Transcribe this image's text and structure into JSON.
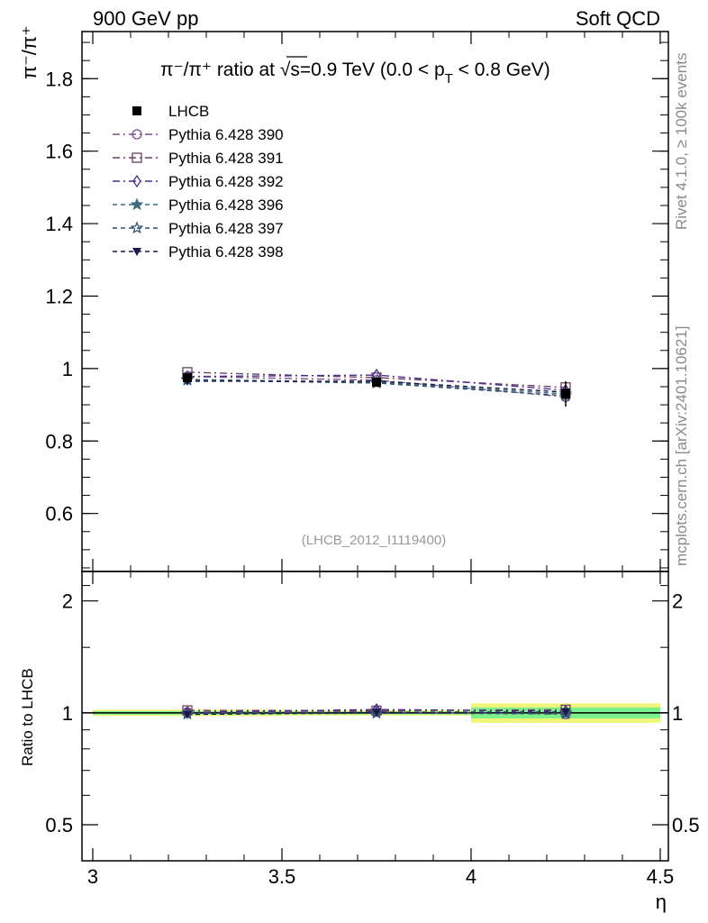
{
  "header": {
    "left": "900 GeV pp",
    "right": "Soft QCD"
  },
  "side_labels": {
    "rivet": "Rivet 4.1.0, ≥ 100k events",
    "mcplots": "mcplots.cern.ch [arXiv:2401.10621]"
  },
  "colors": {
    "data": "#000000",
    "p390": "#7a4f8c",
    "p391": "#6b3f5e",
    "p392": "#4a2d8c",
    "p396": "#3d6b82",
    "p397": "#2f4f70",
    "p398": "#1a1a4a",
    "band_green": "#7cf08a",
    "band_yellow": "#f2f57a"
  },
  "chart_data": {
    "type": "line",
    "title_parts": {
      "main": "π⁻/π⁺ ratio at ",
      "sqrt": "√",
      "s": "s=0.9 TeV (0.0 < p",
      "sub": "T",
      "tail": " < 0.8 GeV)"
    },
    "ylabel": "π⁻/π⁺",
    "ratio_ylabel": "Ratio to LHCB",
    "xlabel": "η",
    "watermark": "(LHCB_2012_I1119400)",
    "xlim": [
      3.0,
      4.5
    ],
    "ylim": [
      0.44,
      1.93
    ],
    "ratio_ylim": [
      0.4,
      2.4
    ],
    "x_ticks": [
      "3",
      "3.5",
      "4",
      "4.5"
    ],
    "x_tick_values": [
      3.0,
      3.5,
      4.0,
      4.5
    ],
    "y_ticks": [
      "0.6",
      "0.8",
      "1",
      "1.2",
      "1.4",
      "1.6",
      "1.8"
    ],
    "y_tick_values": [
      0.6,
      0.8,
      1.0,
      1.2,
      1.4,
      1.6,
      1.8
    ],
    "ratio_y_ticks": [
      "0.5",
      "1",
      "2"
    ],
    "ratio_y_tick_values": [
      0.5,
      1.0,
      2.0
    ],
    "x": [
      3.25,
      3.75,
      4.25
    ],
    "bin_edges": [
      3.0,
      3.5,
      4.0,
      4.5
    ],
    "data": {
      "name": "LHCB",
      "values": [
        0.975,
        0.962,
        0.93
      ],
      "errors": [
        0.012,
        0.01,
        0.035
      ]
    },
    "series": [
      {
        "name": "Pythia 6.428 390",
        "values": [
          0.978,
          0.968,
          0.922
        ],
        "marker": "circle-open",
        "dash": "8,4,2,4",
        "color_key": "p390"
      },
      {
        "name": "Pythia 6.428 391",
        "values": [
          0.99,
          0.975,
          0.948
        ],
        "marker": "square-open",
        "dash": "8,4,2,4",
        "color_key": "p391"
      },
      {
        "name": "Pythia 6.428 392",
        "values": [
          0.978,
          0.982,
          0.94
        ],
        "marker": "diamond-open",
        "dash": "8,4,2,4",
        "color_key": "p392"
      },
      {
        "name": "Pythia 6.428 396",
        "values": [
          0.97,
          0.962,
          0.93
        ],
        "marker": "star-filled",
        "dash": "5,4",
        "color_key": "p396"
      },
      {
        "name": "Pythia 6.428 397",
        "values": [
          0.968,
          0.96,
          0.925
        ],
        "marker": "star-open",
        "dash": "5,4",
        "color_key": "p397"
      },
      {
        "name": "Pythia 6.428 398",
        "values": [
          0.965,
          0.965,
          0.935
        ],
        "marker": "triangle-down-filled",
        "dash": "5,4",
        "color_key": "p398"
      }
    ]
  }
}
